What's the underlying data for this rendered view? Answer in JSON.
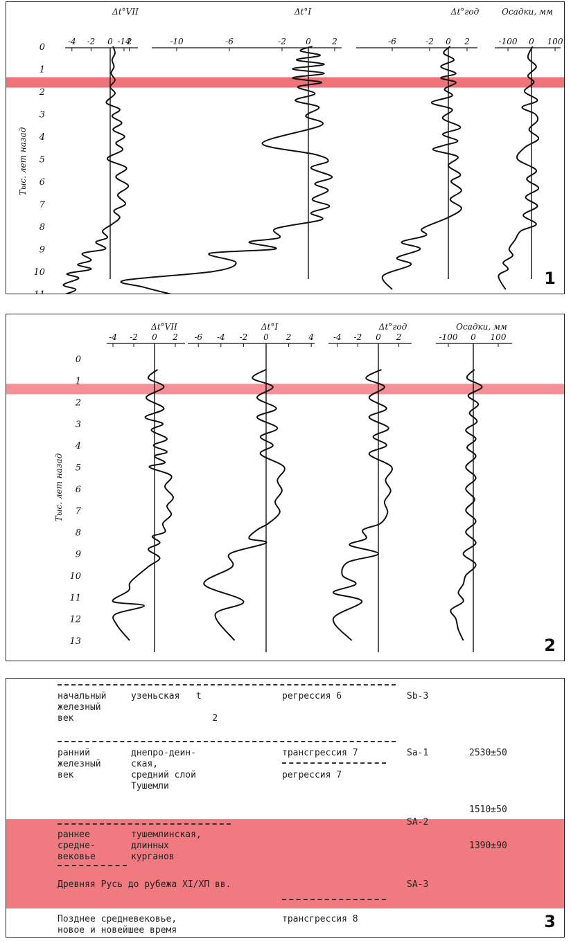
{
  "colors": {
    "highlight": "#f06b73",
    "line": "#111111"
  },
  "panel1": {
    "number": "1",
    "ylabel": "Тыс. лет назад",
    "depth_ticks": [
      "0",
      "1",
      "2",
      "3",
      "4",
      "5",
      "6",
      "7",
      "8",
      "9",
      "10",
      "11"
    ],
    "highlight_depth_ka": 1.6,
    "headers": [
      "Δt°VII",
      "Δt°I",
      "Δt°год",
      "Осадки, мм"
    ],
    "axes": [
      {
        "ticks": [
          "-4",
          "-2",
          "0",
          "2"
        ],
        "tick_values": [
          -4,
          -2,
          0,
          2
        ]
      },
      {
        "ticks": [
          "-14",
          "-10",
          "-6",
          "-2",
          "0",
          "2"
        ],
        "tick_values": [
          -14,
          -10,
          -6,
          -2,
          0,
          2
        ]
      },
      {
        "ticks": [
          "-6",
          "-2",
          "0",
          "2"
        ],
        "tick_values": [
          -6,
          -2,
          0,
          2
        ]
      },
      {
        "ticks": [
          "-100",
          "0",
          "100"
        ],
        "tick_values": [
          -100,
          0,
          100
        ]
      }
    ]
  },
  "panel2": {
    "number": "2",
    "ylabel": "Тыс. лет назад",
    "depth_ticks": [
      "0",
      "1",
      "2",
      "3",
      "4",
      "5",
      "6",
      "7",
      "8",
      "9",
      "10",
      "11",
      "12",
      "13"
    ],
    "highlight_depth_ka": 1.4,
    "headers": [
      "Δt°VII",
      "Δt°I",
      "Δt°год",
      "Осадки, мм"
    ],
    "axes": [
      {
        "ticks": [
          "-4",
          "-2",
          "0",
          "2"
        ],
        "tick_values": [
          -4,
          -2,
          0,
          2
        ]
      },
      {
        "ticks": [
          "-6",
          "-4",
          "-2",
          "0",
          "2",
          "4"
        ],
        "tick_values": [
          -6,
          -4,
          -2,
          0,
          2,
          4
        ]
      },
      {
        "ticks": [
          "-4",
          "-2",
          "0",
          "2"
        ],
        "tick_values": [
          -4,
          -2,
          0,
          2
        ]
      },
      {
        "ticks": [
          "-100",
          "0",
          "100"
        ],
        "tick_values": [
          -100,
          0,
          100
        ]
      }
    ]
  },
  "chart_data": [
    {
      "type": "line",
      "title": "",
      "ylabel": "Тыс. лет назад",
      "series": [
        {
          "name": "Δt°VII",
          "x": [
            0.3,
            0.5,
            0.2,
            0.4,
            0.1,
            0.5,
            0.0,
            0.5,
            -0.4,
            1.0,
            0.2,
            1.2,
            0.3,
            1.5,
            0.6,
            1.3,
            -0.3,
            1.7,
            0.6,
            1.9,
            0.8,
            1.6,
            0.4,
            1.0,
            0.2,
            -0.8,
            -0.3,
            -1.5,
            -0.5,
            -2.9,
            -2.0,
            -3.4,
            -2.0,
            -4.5,
            -3.3,
            -4.9,
            -3.6,
            -4.6
          ],
          "y": [
            0.0,
            0.3,
            0.6,
            0.9,
            1.2,
            1.5,
            1.8,
            2.1,
            2.5,
            2.8,
            3.1,
            3.4,
            3.7,
            4.0,
            4.3,
            4.6,
            5.0,
            5.4,
            5.8,
            6.2,
            6.6,
            7.0,
            7.3,
            7.6,
            7.9,
            8.2,
            8.5,
            8.7,
            9.0,
            9.2,
            9.5,
            9.7,
            9.9,
            10.1,
            10.3,
            10.6,
            10.8,
            11.0
          ]
        },
        {
          "name": "Δt°I",
          "x": [
            0.3,
            -0.6,
            0.9,
            -0.9,
            1.2,
            -1.2,
            1.2,
            -1.2,
            1.0,
            -0.8,
            0.5,
            -1.0,
            0.8,
            -0.2,
            1.0,
            -3.5,
            0.5,
            1.5,
            0.2,
            1.8,
            0.5,
            1.5,
            0.3,
            1.6,
            0.2,
            1.0,
            -2.5,
            -2.2,
            -4.5,
            -2.5,
            -7.5,
            -5.5,
            -7.2,
            -14.0,
            -12.5,
            -10.5
          ],
          "y": [
            0.0,
            0.2,
            0.4,
            0.6,
            0.8,
            1.0,
            1.2,
            1.4,
            1.6,
            1.8,
            2.1,
            2.4,
            2.7,
            3.1,
            3.5,
            4.3,
            4.8,
            5.1,
            5.4,
            5.8,
            6.1,
            6.4,
            6.8,
            7.1,
            7.4,
            7.7,
            8.1,
            8.5,
            8.7,
            9.0,
            9.2,
            9.6,
            10.0,
            10.4,
            10.7,
            11.0
          ]
        },
        {
          "name": "Δt°год",
          "x": [
            0.2,
            -0.5,
            0.6,
            -0.8,
            0.8,
            -0.8,
            0.8,
            -0.4,
            0.4,
            -1.8,
            0.4,
            -0.6,
            1.3,
            -0.6,
            1.0,
            -0.5,
            -1.6,
            1.0,
            0.0,
            1.3,
            0.3,
            1.4,
            0.2,
            1.4,
            0.0,
            -2.8,
            -2.4,
            -5.0,
            -3.0,
            -5.5,
            -4.0,
            -7.0,
            -6.0
          ],
          "y": [
            0.0,
            0.3,
            0.6,
            0.9,
            1.2,
            1.4,
            1.6,
            1.9,
            2.2,
            2.5,
            2.8,
            3.2,
            3.6,
            3.9,
            4.2,
            4.4,
            4.6,
            4.9,
            5.3,
            5.7,
            6.0,
            6.4,
            6.8,
            7.2,
            7.6,
            8.1,
            8.4,
            8.7,
            9.0,
            9.4,
            9.7,
            10.2,
            10.8
          ]
        },
        {
          "name": "Осадки, мм",
          "x": [
            5,
            -15,
            20,
            -15,
            10,
            -30,
            25,
            -40,
            15,
            25,
            -10,
            30,
            -30,
            -60,
            20,
            -20,
            30,
            -25,
            25,
            -35,
            20,
            -45,
            -70,
            -95,
            -80,
            -120,
            -100,
            -140,
            -110
          ],
          "y": [
            0.0,
            0.5,
            0.9,
            1.3,
            1.6,
            2.0,
            2.4,
            2.7,
            3.0,
            3.3,
            3.7,
            4.1,
            4.5,
            5.0,
            5.5,
            5.9,
            6.3,
            6.7,
            7.1,
            7.5,
            7.9,
            8.2,
            8.6,
            9.0,
            9.3,
            9.6,
            9.9,
            10.2,
            10.8
          ]
        }
      ]
    },
    {
      "type": "line",
      "title": "",
      "ylabel": "Тыс. лет назад",
      "series": [
        {
          "name": "Δt°VII",
          "x": [
            0.3,
            -0.6,
            0.9,
            -0.8,
            0.9,
            -0.9,
            0.8,
            -0.3,
            1.2,
            -0.1,
            1.2,
            0.0,
            1.0,
            -0.5,
            1.6,
            1.0,
            1.8,
            1.2,
            1.6,
            0.8,
            1.0,
            -0.2,
            0.5,
            -0.6,
            0.5,
            -0.6,
            -2.3,
            -2.5,
            -4.0,
            -1.0,
            -3.8,
            -3.6,
            -2.4
          ],
          "y": [
            0.5,
            0.9,
            1.3,
            1.8,
            2.3,
            2.7,
            3.0,
            3.3,
            3.7,
            4.0,
            4.3,
            4.5,
            4.8,
            5.0,
            5.4,
            5.9,
            6.4,
            6.8,
            7.2,
            7.6,
            8.0,
            8.2,
            8.5,
            8.8,
            9.2,
            9.6,
            10.3,
            10.7,
            11.2,
            11.4,
            11.8,
            12.3,
            13.0
          ]
        },
        {
          "name": "Δt°I",
          "x": [
            0.0,
            -1.2,
            0.6,
            -0.8,
            0.9,
            -0.8,
            1.0,
            -0.5,
            0.6,
            -0.5,
            1.6,
            1.0,
            1.4,
            0.8,
            1.2,
            0.2,
            -0.8,
            -1.5,
            0.0,
            -3.2,
            -3.0,
            -5.5,
            -2.0,
            -4.5,
            -2.8
          ],
          "y": [
            0.5,
            0.9,
            1.3,
            1.8,
            2.3,
            2.7,
            3.2,
            3.6,
            4.0,
            4.4,
            5.0,
            5.6,
            6.1,
            6.6,
            7.1,
            7.6,
            7.9,
            8.3,
            8.5,
            9.0,
            9.6,
            10.4,
            11.2,
            11.8,
            13.0
          ]
        },
        {
          "name": "Δt°год",
          "x": [
            0.3,
            -1.2,
            0.6,
            -0.9,
            0.8,
            -0.9,
            1.0,
            -0.5,
            0.8,
            -0.9,
            1.3,
            0.7,
            1.2,
            0.6,
            0.9,
            0.2,
            -1.5,
            -1.2,
            -2.8,
            0.0,
            -3.0,
            -3.5,
            -2.2,
            -4.4,
            -1.6,
            -4.4,
            -2.6
          ],
          "y": [
            0.5,
            0.9,
            1.3,
            1.8,
            2.3,
            2.7,
            3.2,
            3.6,
            4.0,
            4.4,
            5.0,
            5.6,
            6.1,
            6.6,
            7.1,
            7.6,
            7.9,
            8.3,
            8.6,
            9.0,
            9.4,
            10.0,
            10.4,
            10.8,
            11.2,
            12.0,
            13.0
          ]
        },
        {
          "name": "Осадки, мм",
          "x": [
            5,
            -25,
            35,
            -20,
            20,
            -15,
            15,
            -30,
            10,
            -25,
            10,
            -30,
            10,
            -30,
            5,
            -30,
            10,
            -30,
            10,
            -40,
            10,
            -30,
            -40,
            -60,
            -40,
            -90,
            -70,
            -60,
            -40
          ],
          "y": [
            0.5,
            0.9,
            1.3,
            1.7,
            2.1,
            2.5,
            2.9,
            3.3,
            3.7,
            4.1,
            4.5,
            5.0,
            5.5,
            6.0,
            6.5,
            7.0,
            7.5,
            8.0,
            8.5,
            9.0,
            9.5,
            10.0,
            10.4,
            10.8,
            11.2,
            11.6,
            12.0,
            12.5,
            13.0
          ]
        }
      ]
    }
  ],
  "panel3": {
    "number": "3",
    "rows": [
      {
        "c1": "начальный\nжелезный\nвек",
        "c2": "узеньская   t\n\n               2",
        "c3": "регрессия 6",
        "c4": "Sb-3",
        "c5": ""
      },
      {
        "c1": "ранний\nжелезный\nвек",
        "c2": "днепро-деин-\nская,\nсредний слой\nТушемли",
        "c3": "трансгрессия 7\n\nрегрессия 7",
        "c4": "Sa-1",
        "c5": "2530±50"
      },
      {
        "c1": "раннее\nсредне-\nвековье",
        "c2": "тушемлинская,\nдлинных\nкурганов",
        "c3": "",
        "c4": "SA-2",
        "c5": "1390±90"
      },
      {
        "c1": "Древняя Русь до рубежа XI/XП вв.",
        "c2": "",
        "c3": "",
        "c4": "SA-3",
        "c5": ""
      },
      {
        "c1": "Позднее средневековье,\nновое и новейшее время",
        "c2": "",
        "c3": "трансгрессия 8",
        "c4": "",
        "c5": ""
      }
    ],
    "extra_value": "1510±50"
  }
}
